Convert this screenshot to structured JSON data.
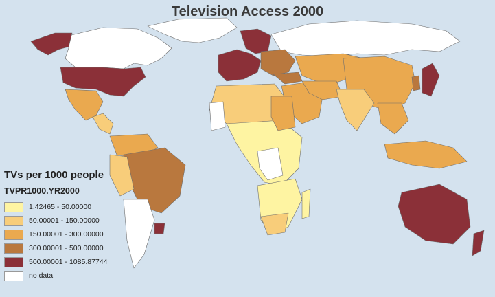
{
  "title": "Television Access 2000",
  "legend": {
    "heading": "TVs per 1000 people",
    "field": "TVPR1000.YR2000",
    "classes": [
      {
        "label": "1.42465 - 50.00000",
        "color": "#fef4a2"
      },
      {
        "label": "50.00001 - 150.00000",
        "color": "#f8cd7a"
      },
      {
        "label": "150.00001 - 300.00000",
        "color": "#eaa94f"
      },
      {
        "label": "300.00001 - 500.00000",
        "color": "#b9783e"
      },
      {
        "label": "500.00001 - 1085.87744",
        "color": "#8b3038"
      },
      {
        "label": "no data",
        "color": "#ffffff"
      }
    ]
  },
  "colors": {
    "ocean": "#d4e2ee",
    "border": "#7a7a7a"
  }
}
